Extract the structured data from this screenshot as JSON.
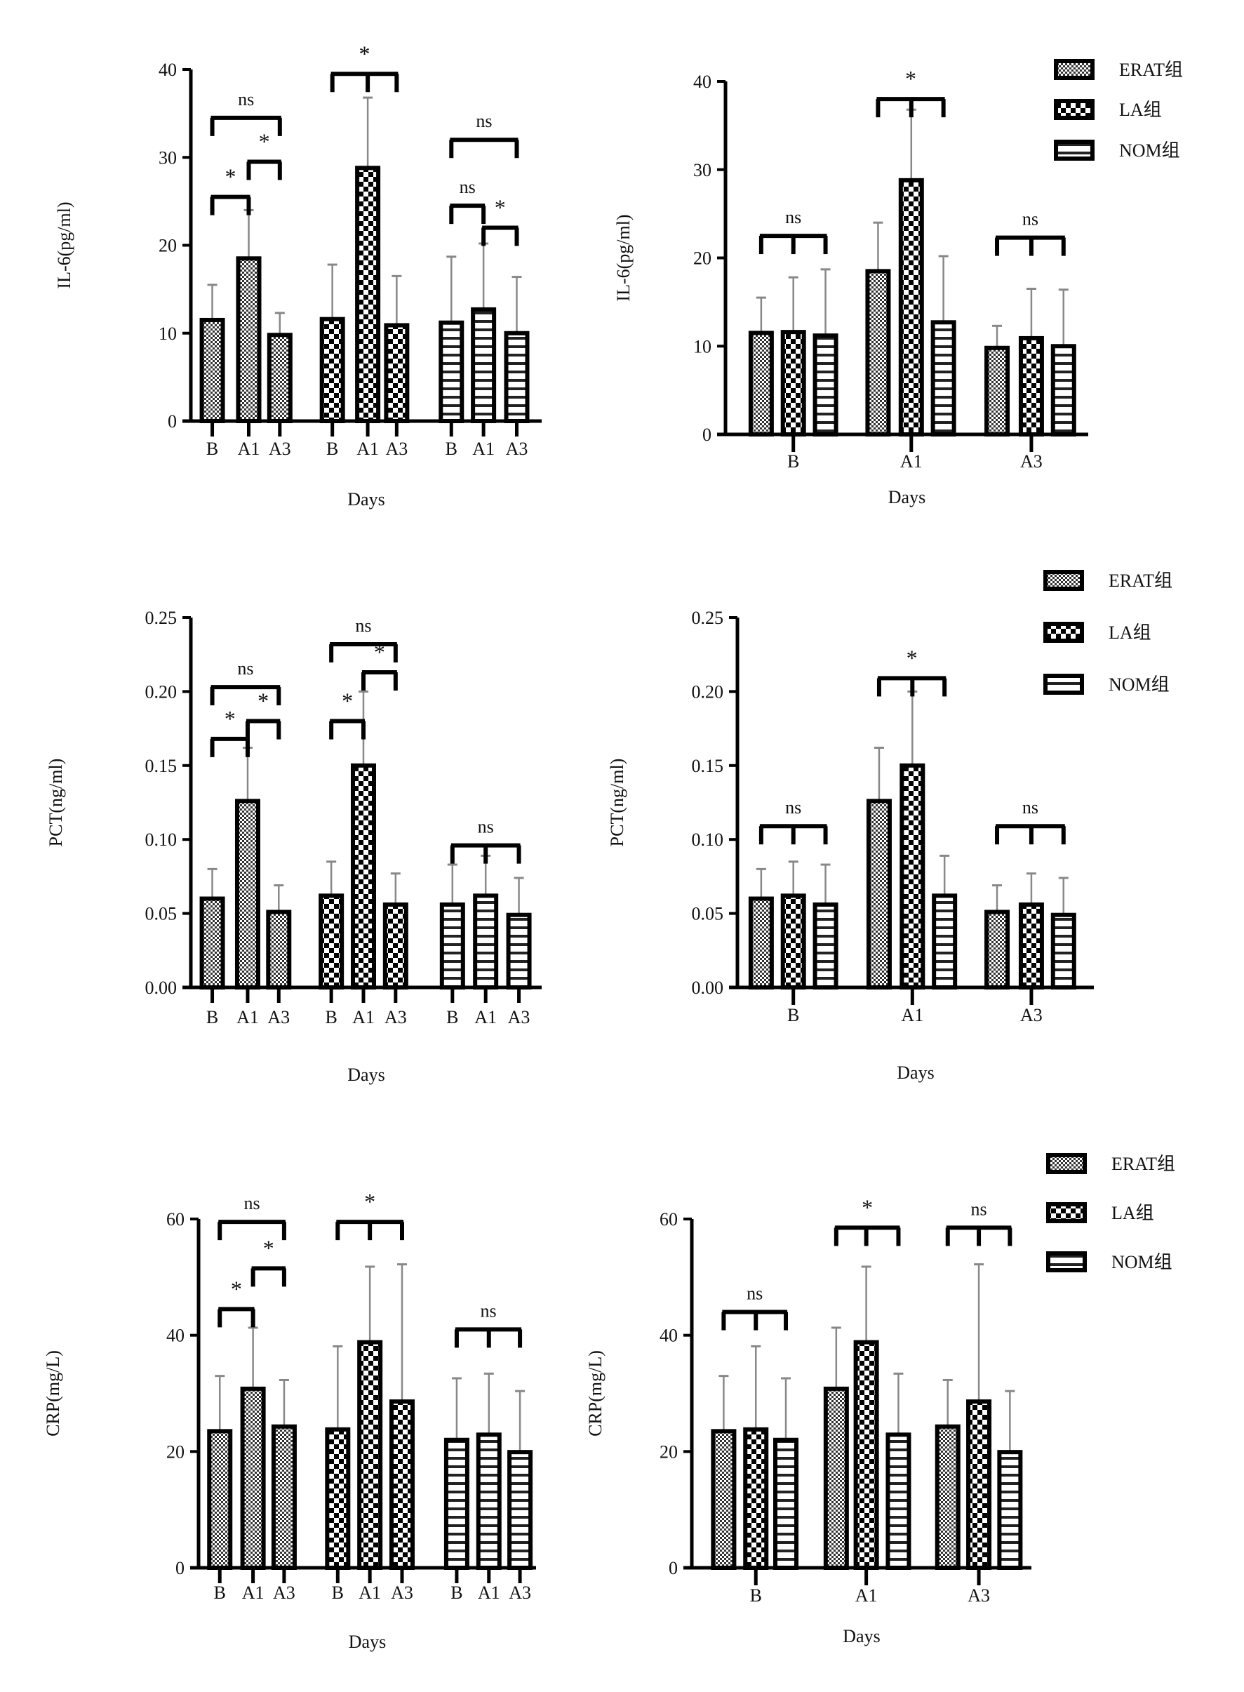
{
  "legend": [
    {
      "name": "ERAT组",
      "pattern": "fine-check"
    },
    {
      "name": "LA组",
      "pattern": "coarse-check"
    },
    {
      "name": "NOM组",
      "pattern": "stripes"
    }
  ],
  "colors": {
    "bar_outline": "#000000",
    "error_bar": "#888888",
    "background": "#ffffff"
  },
  "chart_data": [
    {
      "type": "bar",
      "arrangement": "by-group",
      "ylabel": "IL-6(pg/ml)",
      "xlabel": "Days",
      "ylim": [
        0,
        40
      ],
      "yticks": [
        {
          "v": 0,
          "l": "0"
        },
        {
          "v": 10,
          "l": "10"
        },
        {
          "v": 20,
          "l": "20"
        },
        {
          "v": 30,
          "l": "30"
        },
        {
          "v": 40,
          "l": "40"
        }
      ],
      "tick_labels": [
        "B",
        "A1",
        "A3",
        "B",
        "A1",
        "A3",
        "B",
        "A1",
        "A3"
      ],
      "bars": [
        {
          "group": "ERAT组",
          "day": "B",
          "mean": 11.5,
          "sd": 4.0
        },
        {
          "group": "ERAT组",
          "day": "A1",
          "mean": 18.5,
          "sd": 5.5
        },
        {
          "group": "ERAT组",
          "day": "A3",
          "mean": 9.8,
          "sd": 2.5
        },
        {
          "group": "LA组",
          "day": "B",
          "mean": 11.6,
          "sd": 6.2
        },
        {
          "group": "LA组",
          "day": "A1",
          "mean": 28.8,
          "sd": 8.0
        },
        {
          "group": "LA组",
          "day": "A3",
          "mean": 10.9,
          "sd": 5.6
        },
        {
          "group": "NOM组",
          "day": "B",
          "mean": 11.2,
          "sd": 7.5
        },
        {
          "group": "NOM组",
          "day": "A1",
          "mean": 12.7,
          "sd": 7.5
        },
        {
          "group": "NOM组",
          "day": "A3",
          "mean": 10.0,
          "sd": 6.4
        }
      ],
      "annotations": [
        {
          "bars": [
            0,
            1
          ],
          "level": 25.5,
          "label": "*"
        },
        {
          "bars": [
            1,
            2
          ],
          "level": 29.5,
          "label": "*"
        },
        {
          "bars": [
            0,
            2
          ],
          "level": 34.5,
          "label": "ns"
        },
        {
          "bars": [
            3,
            4,
            5
          ],
          "level": 39.5,
          "label": "*"
        },
        {
          "bars": [
            6,
            7
          ],
          "level": 24.5,
          "label": "ns"
        },
        {
          "bars": [
            7,
            8
          ],
          "level": 22,
          "label": "*"
        },
        {
          "bars": [
            6,
            8
          ],
          "level": 32,
          "label": "ns"
        }
      ]
    },
    {
      "type": "bar",
      "arrangement": "by-day",
      "ylabel": "IL-6(pg/ml)",
      "xlabel": "Days",
      "ylim": [
        0,
        40
      ],
      "yticks": [
        {
          "v": 0,
          "l": "0"
        },
        {
          "v": 10,
          "l": "10"
        },
        {
          "v": 20,
          "l": "20"
        },
        {
          "v": 30,
          "l": "30"
        },
        {
          "v": 40,
          "l": "40"
        }
      ],
      "tick_labels": [
        "B",
        "A1",
        "A3"
      ],
      "bars": [
        {
          "group": "ERAT组",
          "day": "B",
          "mean": 11.5,
          "sd": 4.0
        },
        {
          "group": "LA组",
          "day": "B",
          "mean": 11.6,
          "sd": 6.2
        },
        {
          "group": "NOM组",
          "day": "B",
          "mean": 11.2,
          "sd": 7.5
        },
        {
          "group": "ERAT组",
          "day": "A1",
          "mean": 18.5,
          "sd": 5.5
        },
        {
          "group": "LA组",
          "day": "A1",
          "mean": 28.8,
          "sd": 8.0
        },
        {
          "group": "NOM组",
          "day": "A1",
          "mean": 12.7,
          "sd": 7.5
        },
        {
          "group": "ERAT组",
          "day": "A3",
          "mean": 9.8,
          "sd": 2.5
        },
        {
          "group": "LA组",
          "day": "A3",
          "mean": 10.9,
          "sd": 5.6
        },
        {
          "group": "NOM组",
          "day": "A3",
          "mean": 10.0,
          "sd": 6.4
        }
      ],
      "annotations": [
        {
          "bars": [
            0,
            1,
            2
          ],
          "level": 22.5,
          "label": "ns"
        },
        {
          "bars": [
            3,
            4,
            5
          ],
          "level": 38,
          "label": "*"
        },
        {
          "bars": [
            6,
            7,
            8
          ],
          "level": 22.3,
          "label": "ns"
        }
      ]
    },
    {
      "type": "bar",
      "arrangement": "by-group",
      "ylabel": "PCT(ng/ml)",
      "xlabel": "Days",
      "ylim": [
        0,
        0.25
      ],
      "yticks": [
        {
          "v": 0,
          "l": "0.00"
        },
        {
          "v": 0.05,
          "l": "0.05"
        },
        {
          "v": 0.1,
          "l": "0.10"
        },
        {
          "v": 0.15,
          "l": "0.15"
        },
        {
          "v": 0.2,
          "l": "0.20"
        },
        {
          "v": 0.25,
          "l": "0.25"
        }
      ],
      "tick_labels": [
        "B",
        "A1",
        "A3",
        "B",
        "A1",
        "A3",
        "B",
        "A1",
        "A3"
      ],
      "bars": [
        {
          "group": "ERAT组",
          "day": "B",
          "mean": 0.06,
          "sd": 0.02
        },
        {
          "group": "ERAT组",
          "day": "A1",
          "mean": 0.126,
          "sd": 0.036
        },
        {
          "group": "ERAT组",
          "day": "A3",
          "mean": 0.051,
          "sd": 0.018
        },
        {
          "group": "LA组",
          "day": "B",
          "mean": 0.062,
          "sd": 0.023
        },
        {
          "group": "LA组",
          "day": "A1",
          "mean": 0.15,
          "sd": 0.05
        },
        {
          "group": "LA组",
          "day": "A3",
          "mean": 0.056,
          "sd": 0.021
        },
        {
          "group": "NOM组",
          "day": "B",
          "mean": 0.056,
          "sd": 0.027
        },
        {
          "group": "NOM组",
          "day": "A1",
          "mean": 0.062,
          "sd": 0.027
        },
        {
          "group": "NOM组",
          "day": "A3",
          "mean": 0.049,
          "sd": 0.025
        }
      ],
      "annotations": [
        {
          "bars": [
            0,
            1
          ],
          "level": 0.168,
          "label": "*"
        },
        {
          "bars": [
            1,
            2
          ],
          "level": 0.18,
          "label": "*"
        },
        {
          "bars": [
            0,
            2
          ],
          "level": 0.203,
          "label": "ns"
        },
        {
          "bars": [
            3,
            4
          ],
          "level": 0.18,
          "label": "*"
        },
        {
          "bars": [
            4,
            5
          ],
          "level": 0.213,
          "label": "*"
        },
        {
          "bars": [
            3,
            5
          ],
          "level": 0.232,
          "label": "ns"
        },
        {
          "bars": [
            6,
            7,
            8
          ],
          "level": 0.096,
          "label": "ns"
        }
      ]
    },
    {
      "type": "bar",
      "arrangement": "by-day",
      "ylabel": "PCT(ng/ml)",
      "xlabel": "Days",
      "ylim": [
        0,
        0.25
      ],
      "yticks": [
        {
          "v": 0,
          "l": "0.00"
        },
        {
          "v": 0.05,
          "l": "0.05"
        },
        {
          "v": 0.1,
          "l": "0.10"
        },
        {
          "v": 0.15,
          "l": "0.15"
        },
        {
          "v": 0.2,
          "l": "0.20"
        },
        {
          "v": 0.25,
          "l": "0.25"
        }
      ],
      "tick_labels": [
        "B",
        "A1",
        "A3"
      ],
      "bars": [
        {
          "group": "ERAT组",
          "day": "B",
          "mean": 0.06,
          "sd": 0.02
        },
        {
          "group": "LA组",
          "day": "B",
          "mean": 0.062,
          "sd": 0.023
        },
        {
          "group": "NOM组",
          "day": "B",
          "mean": 0.056,
          "sd": 0.027
        },
        {
          "group": "ERAT组",
          "day": "A1",
          "mean": 0.126,
          "sd": 0.036
        },
        {
          "group": "LA组",
          "day": "A1",
          "mean": 0.15,
          "sd": 0.05
        },
        {
          "group": "NOM组",
          "day": "A1",
          "mean": 0.062,
          "sd": 0.027
        },
        {
          "group": "ERAT组",
          "day": "A3",
          "mean": 0.051,
          "sd": 0.018
        },
        {
          "group": "LA组",
          "day": "A3",
          "mean": 0.056,
          "sd": 0.021
        },
        {
          "group": "NOM组",
          "day": "A3",
          "mean": 0.049,
          "sd": 0.025
        }
      ],
      "annotations": [
        {
          "bars": [
            0,
            1,
            2
          ],
          "level": 0.109,
          "label": "ns"
        },
        {
          "bars": [
            3,
            4,
            5
          ],
          "level": 0.209,
          "label": "*"
        },
        {
          "bars": [
            6,
            7,
            8
          ],
          "level": 0.109,
          "label": "ns"
        }
      ]
    },
    {
      "type": "bar",
      "arrangement": "by-group",
      "ylabel": "CRP(mg/L)",
      "xlabel": "Days",
      "ylim": [
        0,
        60
      ],
      "yticks": [
        {
          "v": 0,
          "l": "0"
        },
        {
          "v": 20,
          "l": "20"
        },
        {
          "v": 40,
          "l": "40"
        },
        {
          "v": 60,
          "l": "60"
        }
      ],
      "tick_labels": [
        "B",
        "A1",
        "A3",
        "B",
        "A1",
        "A3",
        "B",
        "A1",
        "A3"
      ],
      "bars": [
        {
          "group": "ERAT组",
          "day": "B",
          "mean": 23.5,
          "sd": 9.5
        },
        {
          "group": "ERAT组",
          "day": "A1",
          "mean": 30.8,
          "sd": 10.5
        },
        {
          "group": "ERAT组",
          "day": "A3",
          "mean": 24.3,
          "sd": 8.0
        },
        {
          "group": "LA组",
          "day": "B",
          "mean": 23.8,
          "sd": 14.3
        },
        {
          "group": "LA组",
          "day": "A1",
          "mean": 38.8,
          "sd": 13.0
        },
        {
          "group": "LA组",
          "day": "A3",
          "mean": 28.6,
          "sd": 23.6
        },
        {
          "group": "NOM组",
          "day": "B",
          "mean": 22.0,
          "sd": 10.6
        },
        {
          "group": "NOM组",
          "day": "A1",
          "mean": 22.9,
          "sd": 10.5
        },
        {
          "group": "NOM组",
          "day": "A3",
          "mean": 19.9,
          "sd": 10.5
        }
      ],
      "annotations": [
        {
          "bars": [
            0,
            1
          ],
          "level": 44.5,
          "label": "*"
        },
        {
          "bars": [
            1,
            2
          ],
          "level": 51.5,
          "label": "*"
        },
        {
          "bars": [
            0,
            2
          ],
          "level": 59.5,
          "label": "ns"
        },
        {
          "bars": [
            3,
            4,
            5
          ],
          "level": 59.5,
          "label": "*"
        },
        {
          "bars": [
            6,
            7,
            8
          ],
          "level": 41,
          "label": "ns"
        }
      ]
    },
    {
      "type": "bar",
      "arrangement": "by-day",
      "ylabel": "CRP(mg/L)",
      "xlabel": "Days",
      "ylim": [
        0,
        60
      ],
      "yticks": [
        {
          "v": 0,
          "l": "0"
        },
        {
          "v": 20,
          "l": "20"
        },
        {
          "v": 40,
          "l": "40"
        },
        {
          "v": 60,
          "l": "60"
        }
      ],
      "tick_labels": [
        "B",
        "A1",
        "A3"
      ],
      "bars": [
        {
          "group": "ERAT组",
          "day": "B",
          "mean": 23.5,
          "sd": 9.5
        },
        {
          "group": "LA组",
          "day": "B",
          "mean": 23.8,
          "sd": 14.3
        },
        {
          "group": "NOM组",
          "day": "B",
          "mean": 22.0,
          "sd": 10.6
        },
        {
          "group": "ERAT组",
          "day": "A1",
          "mean": 30.8,
          "sd": 10.5
        },
        {
          "group": "LA组",
          "day": "A1",
          "mean": 38.8,
          "sd": 13.0
        },
        {
          "group": "NOM组",
          "day": "A1",
          "mean": 22.9,
          "sd": 10.5
        },
        {
          "group": "ERAT组",
          "day": "A3",
          "mean": 24.3,
          "sd": 8.0
        },
        {
          "group": "LA组",
          "day": "A3",
          "mean": 28.6,
          "sd": 23.6
        },
        {
          "group": "NOM组",
          "day": "A3",
          "mean": 19.9,
          "sd": 10.5
        }
      ],
      "annotations": [
        {
          "bars": [
            0,
            1,
            2
          ],
          "level": 44,
          "label": "ns"
        },
        {
          "bars": [
            3,
            4,
            5
          ],
          "level": 58.5,
          "label": "*"
        },
        {
          "bars": [
            6,
            7,
            8
          ],
          "level": 58.5,
          "label": "ns"
        }
      ]
    }
  ]
}
